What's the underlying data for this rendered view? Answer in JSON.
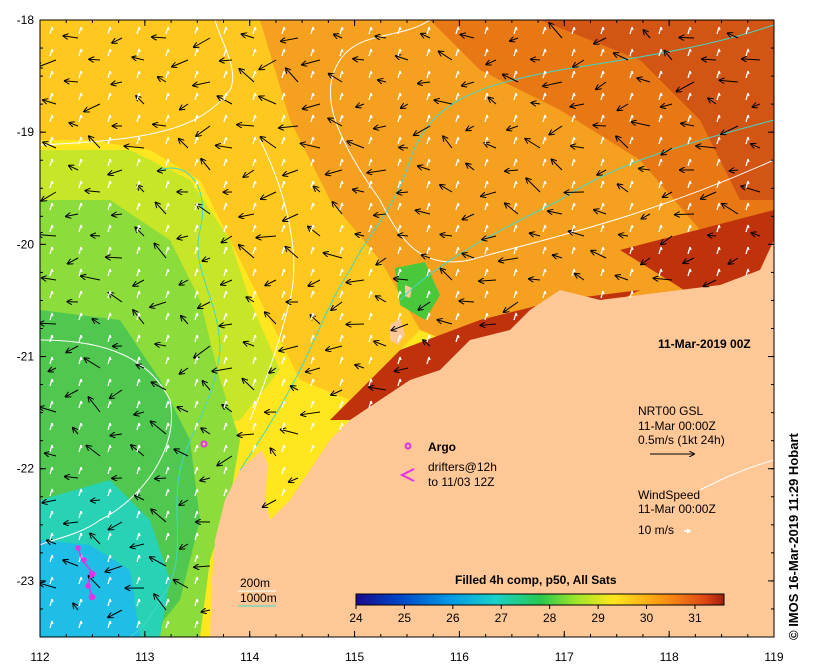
{
  "map": {
    "date_label": "11-Mar-2019 00Z",
    "lon_ticks": [
      "112",
      "113",
      "114",
      "115",
      "116",
      "117",
      "118",
      "119"
    ],
    "lat_ticks": [
      "-18",
      "-19",
      "-20",
      "-21",
      "-22",
      "-23"
    ],
    "lon_range": [
      112,
      119
    ],
    "lat_range": [
      -23.5,
      -18
    ],
    "contour_legend": {
      "line1": "200m",
      "line2": "1000m"
    },
    "argo_label": "Argo",
    "drifters_label": {
      "line1": "drifters@12h",
      "line2": "to 11/03 12Z"
    },
    "current_legend": {
      "line1": "NRT00 GSL",
      "line2": "11-Mar 00:00Z",
      "line3": "0.5m/s (1kt 24h)"
    },
    "wind_legend": {
      "line1": "WindSpeed",
      "line2": "11-Mar 00:00Z",
      "line3": "10 m/s"
    },
    "colorbar": {
      "title": "Filled 4h comp, p50, All Sats",
      "ticks": [
        "24",
        "25",
        "26",
        "27",
        "28",
        "29",
        "30",
        "31"
      ],
      "range": [
        24,
        31.6
      ],
      "colors": [
        "#1a0a8c",
        "#0046c8",
        "#0096e6",
        "#19d2c8",
        "#28c850",
        "#a0e628",
        "#ffe61e",
        "#ffaa14",
        "#f07814",
        "#dc4614",
        "#a01e0a"
      ]
    },
    "argo_float": {
      "lon": 113.55,
      "lat": -21.78
    },
    "copyright": "© IMOS 16-Mar-2019 11:29 Hobart",
    "colors": {
      "land": "#ffc896",
      "contour_200": "#ffffff",
      "contour_1000": "#40d8c8",
      "argo": "#e632e6"
    }
  }
}
